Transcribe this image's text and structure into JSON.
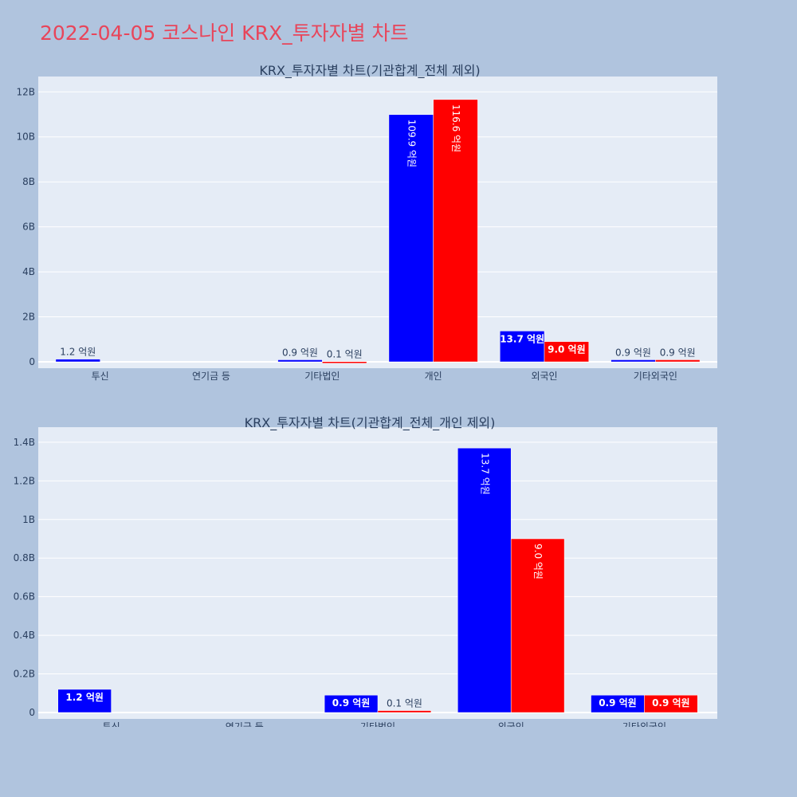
{
  "page_title": "2022-04-05 코스나인 KRX_투자자별 차트",
  "colors": {
    "buy": "#0000ff",
    "sell": "#ff0000",
    "plot_bg": "#e5ecf6",
    "page_bg": "#b0c4de",
    "title": "#e8455a"
  },
  "chart_data": [
    {
      "type": "bar",
      "title": "KRX_투자자별 차트(기관합계_전체 제외)",
      "categories": [
        "투신",
        "연기금 등",
        "기타법인",
        "개인",
        "외국인",
        "기타외국인"
      ],
      "yticks": [
        "0",
        "2B",
        "4B",
        "6B",
        "8B",
        "10B",
        "12B"
      ],
      "ylim": [
        0,
        12.4
      ],
      "grid": true,
      "series": [
        {
          "color": "blue",
          "values": [
            0.12,
            0,
            0.09,
            10.99,
            1.37,
            0.09
          ],
          "labels": [
            "1.2 억원",
            "",
            "0.9 억원",
            "109.9 억원",
            "13.7 억원",
            "0.9 억원"
          ]
        },
        {
          "color": "red",
          "values": [
            0,
            0,
            0.01,
            11.66,
            0.9,
            0.09
          ],
          "labels": [
            "",
            "",
            "0.1 억원",
            "116.6 억원",
            "9.0 억원",
            "0.9 억원"
          ]
        }
      ]
    },
    {
      "type": "bar",
      "title": "KRX_투자자별 차트(기관합계_전체_개인 제외)",
      "categories": [
        "투신",
        "연기금 등",
        "기타법인",
        "외국인",
        "기타외국인"
      ],
      "yticks": [
        "0",
        "0.2B",
        "0.4B",
        "0.6B",
        "0.8B",
        "1B",
        "1.2B",
        "1.4B"
      ],
      "ylim": [
        0,
        1.445
      ],
      "grid": true,
      "series": [
        {
          "color": "blue",
          "values": [
            0.12,
            0,
            0.09,
            1.37,
            0.09
          ],
          "labels": [
            "1.2 억원",
            "",
            "0.9 억원",
            "13.7 억원",
            "0.9 억원"
          ]
        },
        {
          "color": "red",
          "values": [
            0,
            0,
            0.01,
            0.9,
            0.09
          ],
          "labels": [
            "",
            "",
            "0.1 억원",
            "9.0 억원",
            "0.9 억원"
          ]
        }
      ]
    }
  ]
}
